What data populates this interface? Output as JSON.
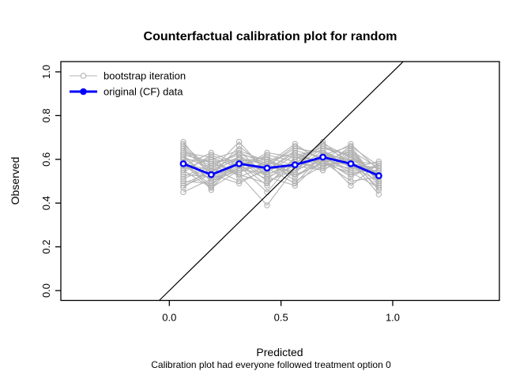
{
  "title": "Counterfactual calibration plot for random",
  "subtitle": "Calibration plot had everyone followed treatment option 0",
  "legend": {
    "position": "topleft",
    "entries": [
      {
        "label": "bootstrap iteration",
        "color": "#b3b3b3",
        "marker": "open-circle",
        "line_width": 1
      },
      {
        "label": "original (CF) data",
        "color": "#0000ff",
        "marker": "filled-circle",
        "line_width": 3
      }
    ]
  },
  "colors": {
    "bootstrap": "#b3b3b3",
    "original": "#0000ff",
    "identity_line": "#000000",
    "axis": "#000000",
    "background": "#ffffff"
  },
  "chart_data": {
    "type": "line",
    "title": "Counterfactual calibration plot for random",
    "subtitle": "Calibration plot had everyone followed treatment option 0",
    "xlabel": "Predicted",
    "ylabel": "Observed",
    "x_tick_values": [
      0.0,
      0.5,
      1.0
    ],
    "x_tick_labels": [
      "0.0",
      "0.5",
      "1.0"
    ],
    "y_tick_values": [
      0.0,
      0.2,
      0.4,
      0.6,
      0.8,
      1.0
    ],
    "y_tick_labels": [
      "0.0",
      "0.2",
      "0.4",
      "0.6",
      "0.8",
      "1.0"
    ],
    "x_axis_range": [
      -0.49,
      1.48
    ],
    "y_axis_range": [
      -0.05,
      1.05
    ],
    "grid": false,
    "identity_line": true,
    "legend_position": "topleft",
    "x": [
      0.0625,
      0.1875,
      0.3125,
      0.4375,
      0.5625,
      0.6875,
      0.8125,
      0.9375
    ],
    "series": [
      {
        "name": "original (CF) data",
        "role": "original",
        "values": [
          0.58,
          0.53,
          0.58,
          0.56,
          0.575,
          0.61,
          0.58,
          0.525
        ]
      }
    ],
    "bootstrap_series": [
      [
        0.58,
        0.47,
        0.55,
        0.54,
        0.62,
        0.58,
        0.65,
        0.49
      ],
      [
        0.67,
        0.55,
        0.6,
        0.5,
        0.55,
        0.64,
        0.58,
        0.56
      ],
      [
        0.51,
        0.57,
        0.63,
        0.58,
        0.52,
        0.61,
        0.54,
        0.47
      ],
      [
        0.62,
        0.5,
        0.57,
        0.45,
        0.6,
        0.66,
        0.61,
        0.53
      ],
      [
        0.55,
        0.61,
        0.52,
        0.57,
        0.66,
        0.6,
        0.52,
        0.58
      ],
      [
        0.48,
        0.53,
        0.59,
        0.61,
        0.57,
        0.55,
        0.63,
        0.51
      ],
      [
        0.6,
        0.46,
        0.62,
        0.53,
        0.58,
        0.68,
        0.57,
        0.54
      ],
      [
        0.64,
        0.58,
        0.54,
        0.59,
        0.63,
        0.57,
        0.6,
        0.46
      ],
      [
        0.53,
        0.52,
        0.66,
        0.56,
        0.49,
        0.62,
        0.66,
        0.57
      ],
      [
        0.57,
        0.63,
        0.58,
        0.48,
        0.61,
        0.59,
        0.5,
        0.52
      ],
      [
        0.66,
        0.54,
        0.61,
        0.57,
        0.54,
        0.63,
        0.59,
        0.58
      ],
      [
        0.5,
        0.49,
        0.56,
        0.62,
        0.59,
        0.56,
        0.64,
        0.5
      ],
      [
        0.61,
        0.56,
        0.5,
        0.55,
        0.64,
        0.61,
        0.55,
        0.55
      ],
      [
        0.56,
        0.6,
        0.64,
        0.52,
        0.57,
        0.65,
        0.62,
        0.48
      ],
      [
        0.45,
        0.51,
        0.58,
        0.6,
        0.53,
        0.58,
        0.56,
        0.59
      ],
      [
        0.63,
        0.57,
        0.53,
        0.39,
        0.56,
        0.62,
        0.58,
        0.53
      ],
      [
        0.59,
        0.48,
        0.6,
        0.58,
        0.67,
        0.59,
        0.53,
        0.57
      ],
      [
        0.54,
        0.62,
        0.57,
        0.51,
        0.6,
        0.67,
        0.61,
        0.51
      ],
      [
        0.65,
        0.53,
        0.49,
        0.56,
        0.55,
        0.6,
        0.67,
        0.55
      ],
      [
        0.52,
        0.58,
        0.62,
        0.6,
        0.5,
        0.57,
        0.59,
        0.47
      ],
      [
        0.58,
        0.55,
        0.68,
        0.54,
        0.62,
        0.64,
        0.56,
        0.54
      ],
      [
        0.61,
        0.5,
        0.55,
        0.58,
        0.57,
        0.61,
        0.48,
        0.58
      ],
      [
        0.47,
        0.56,
        0.61,
        0.53,
        0.59,
        0.55,
        0.62,
        0.52
      ],
      [
        0.63,
        0.61,
        0.56,
        0.57,
        0.65,
        0.63,
        0.57,
        0.5
      ],
      [
        0.55,
        0.47,
        0.59,
        0.61,
        0.52,
        0.59,
        0.64,
        0.56
      ],
      [
        0.6,
        0.59,
        0.53,
        0.49,
        0.58,
        0.66,
        0.59,
        0.44
      ],
      [
        0.68,
        0.52,
        0.58,
        0.55,
        0.63,
        0.58,
        0.54,
        0.55
      ],
      [
        0.49,
        0.54,
        0.64,
        0.59,
        0.56,
        0.62,
        0.6,
        0.53
      ],
      [
        0.57,
        0.51,
        0.56,
        0.63,
        0.61,
        0.57,
        0.66,
        0.49
      ],
      [
        0.62,
        0.59,
        0.6,
        0.52,
        0.48,
        0.6,
        0.57,
        0.56
      ]
    ]
  }
}
